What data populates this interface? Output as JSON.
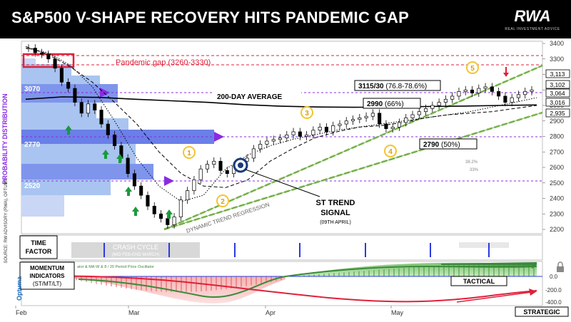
{
  "header": {
    "title": "S&P500 V-SHAPE RECOVERY HITS PANDEMIC GAP",
    "logo": "RWA",
    "logo_sub": "REAL INVESTMENT ADVICE"
  },
  "colors": {
    "header_bg": "#000000",
    "pandemic_gap": "#e0203a",
    "vol_profile": "#6a7fe8",
    "vol_profile_light": "#a9c4f0",
    "green_arrow": "#1a9a3a",
    "trend_green": "#9ad36a",
    "momentum_green": "#5cb85c",
    "momentum_red": "#f08a8a",
    "badge": "#f4c430"
  },
  "chart_data": {
    "type": "line",
    "title": "S&P500 V-SHAPE RECOVERY HITS PANDEMIC GAP",
    "y_axis": {
      "range": [
        2150,
        3420
      ],
      "ticks": [
        2200,
        2300,
        2400,
        2500,
        2600,
        2700,
        2800,
        2900,
        3000,
        3100,
        3200,
        3300,
        3400
      ]
    },
    "x_axis": {
      "ticks": [
        "Feb",
        "Mar",
        "Apr",
        "May"
      ]
    },
    "right_badges": [
      "3,113",
      "3,102",
      "3,064",
      "3,016",
      "2,935"
    ],
    "series": [
      {
        "name": "200-DAY AVERAGE",
        "values": [
          3040,
          3055,
          3052,
          3040,
          3030,
          3020,
          3005,
          2995,
          2990,
          2988,
          2990,
          2993,
          2996,
          3000,
          3003
        ]
      },
      {
        "values": [
          3380,
          3330,
          3250,
          3150,
          3020,
          2880,
          2700,
          2560,
          2480,
          2470,
          2520,
          2640,
          2720,
          2790,
          2830,
          2860,
          2870,
          2890,
          2920,
          2940,
          2950,
          2960,
          2980,
          3000
        ]
      },
      {
        "values": [
          3370,
          3340,
          3260,
          3120,
          2900,
          2660,
          2480,
          2380,
          2420,
          2590,
          2680,
          2740,
          2780,
          2810,
          2840,
          2860,
          2880,
          2900,
          2920,
          2940,
          2960,
          2990,
          3020,
          3050
        ]
      }
    ],
    "levels": [
      {
        "label": "3070",
        "value": 3070
      },
      {
        "label": "2770",
        "value": 2770
      },
      {
        "label": "2520",
        "value": 2520
      }
    ],
    "annotations": {
      "pandemic_gap": "Pandemic gap (3260-3330)",
      "target_1": "3115/30",
      "target_1_pct": "(76.8-78.6%)",
      "target_2": "2990",
      "target_2_pct": "(66%)",
      "target_3": "2790",
      "target_3_pct": "(50%)",
      "ma200_label": "200-DAY AVERAGE",
      "st_trend": "ST TREND",
      "signal": "SIGNAL",
      "signal_date": "(09TH APRIL)",
      "dynamic": "DYNAMIC TREND REGRESSION",
      "fib1": "38.2%",
      "fib2": "33%",
      "badges": [
        "1",
        "2",
        "3",
        "4",
        "5"
      ]
    },
    "left_axis_label": "PROBABILITY DISTRIBUTION",
    "source": "SOURCE: RW ADVISORY (RWA), OPTUMA",
    "time_factor": {
      "label_1": "TIME",
      "label_2": "FACTOR",
      "cycle": "CRASH CYCLE",
      "cycle_sub": "(MID FEB-END MARCH)"
    },
    "momentum": {
      "label_1": "MOMENTUM",
      "label_2": "INDICATORS",
      "label_3": "(ST/MT/LT)",
      "legend": "ator & MA-W & 8 / 20 Period Price Oscillator",
      "ticks": [
        "0.0",
        "-200.0",
        "-400.0"
      ],
      "tactical": "TACTICAL",
      "strategic": "STRATEGIC"
    },
    "brand": "Optuma"
  }
}
